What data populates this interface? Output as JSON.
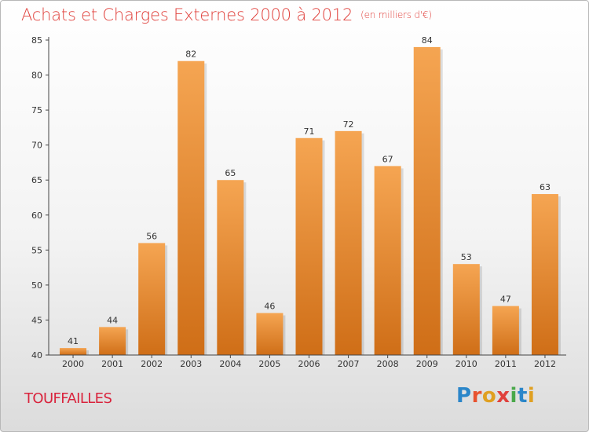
{
  "page": {
    "title": "Achats et Charges Externes 2000 à 2012",
    "unit_note": "(en milliers d'€)",
    "commune": "TOUFFAILLES",
    "logo": "Proxiti"
  },
  "colors": {
    "title": "#e0413c",
    "bar_light": "#f5a552",
    "bar_dark": "#cf6e17",
    "commune": "#d9243d"
  },
  "chart_data": {
    "type": "bar",
    "title": "Achats et Charges Externes 2000 à 2012",
    "categories": [
      "2000",
      "2001",
      "2002",
      "2003",
      "2004",
      "2005",
      "2006",
      "2007",
      "2008",
      "2009",
      "2010",
      "2011",
      "2012"
    ],
    "values": [
      41,
      44,
      56,
      82,
      65,
      46,
      71,
      72,
      67,
      84,
      53,
      47,
      63
    ],
    "ylim": [
      40,
      85
    ],
    "yticks": [
      40,
      45,
      50,
      55,
      60,
      65,
      70,
      75,
      80,
      85
    ],
    "grid": false,
    "xlabel": "",
    "ylabel": ""
  }
}
